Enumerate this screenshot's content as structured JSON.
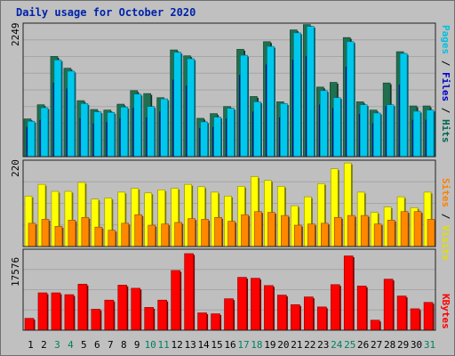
{
  "chart_data": [
    {
      "type": "bar",
      "panel": "pages-files-hits",
      "title": "Daily usage for October 2020",
      "ymax_label": "2249",
      "ylim": [
        0,
        2249
      ],
      "grid": true,
      "categories": [
        "1",
        "2",
        "3",
        "4",
        "5",
        "6",
        "7",
        "8",
        "9",
        "10",
        "11",
        "12",
        "13",
        "14",
        "15",
        "16",
        "17",
        "18",
        "19",
        "20",
        "21",
        "22",
        "23",
        "24",
        "25",
        "26",
        "27",
        "28",
        "29",
        "30",
        "31"
      ],
      "weekend_days": [
        "3",
        "4",
        "10",
        "11",
        "17",
        "18",
        "24",
        "25",
        "31"
      ],
      "legend_parts": [
        {
          "text": "Pages",
          "color": "#00c0e0"
        },
        {
          "text": " / ",
          "color": "#000000"
        },
        {
          "text": "Files",
          "color": "#0000cc"
        },
        {
          "text": " / ",
          "color": "#000000"
        },
        {
          "text": "Hits",
          "color": "#006850"
        }
      ],
      "series": [
        {
          "name": "Hits",
          "color": "#207050",
          "values": [
            640,
            880,
            1700,
            1500,
            950,
            800,
            790,
            890,
            1120,
            1070,
            1000,
            1810,
            1710,
            650,
            730,
            850,
            1820,
            1020,
            1950,
            930,
            2150,
            2240,
            1180,
            1260,
            2020,
            930,
            790,
            1250,
            1780,
            860,
            860
          ]
        },
        {
          "name": "Files",
          "color": "#0000cc",
          "values": [
            500,
            620,
            1250,
            1150,
            650,
            560,
            580,
            650,
            820,
            660,
            760,
            1300,
            1200,
            480,
            500,
            640,
            1380,
            760,
            1560,
            660,
            1640,
            1700,
            880,
            820,
            1520,
            720,
            560,
            850,
            1220,
            620,
            620
          ]
        },
        {
          "name": "Pages",
          "color": "#00c8ec",
          "values": [
            600,
            830,
            1640,
            1450,
            900,
            760,
            750,
            840,
            1060,
            850,
            980,
            1770,
            1660,
            590,
            670,
            820,
            1720,
            930,
            1870,
            900,
            2100,
            2210,
            1120,
            1000,
            1950,
            880,
            740,
            880,
            1750,
            770,
            790
          ]
        }
      ]
    },
    {
      "type": "bar",
      "panel": "sites-visits",
      "ymax_label": "220",
      "ylim": [
        0,
        220
      ],
      "grid": true,
      "legend_parts": [
        {
          "text": "Sites",
          "color": "#ff8000"
        },
        {
          "text": " / ",
          "color": "#000000"
        },
        {
          "text": "Visits",
          "color": "#e0e000"
        }
      ],
      "series": [
        {
          "name": "Visits",
          "color": "#ffff00",
          "values": [
            130,
            160,
            142,
            142,
            165,
            122,
            125,
            140,
            150,
            138,
            146,
            150,
            160,
            154,
            140,
            130,
            155,
            180,
            170,
            155,
            105,
            128,
            162,
            200,
            215,
            140,
            88,
            102,
            128,
            100,
            140
          ]
        },
        {
          "name": "Sites",
          "color": "#ff8800",
          "values": [
            60,
            70,
            52,
            68,
            75,
            50,
            42,
            60,
            82,
            55,
            58,
            62,
            72,
            70,
            75,
            65,
            82,
            90,
            88,
            80,
            55,
            58,
            60,
            75,
            80,
            80,
            58,
            68,
            90,
            90,
            70
          ]
        }
      ]
    },
    {
      "type": "bar",
      "panel": "kbytes",
      "ymax_label": "17576",
      "ylim": [
        0,
        17576
      ],
      "grid": true,
      "legend_parts": [
        {
          "text": "KBytes",
          "color": "#ff0000"
        }
      ],
      "series": [
        {
          "name": "KBytes",
          "color": "#ff0000",
          "values": [
            2600,
            8200,
            8200,
            7800,
            10100,
            4600,
            6600,
            9900,
            9200,
            5000,
            6600,
            13100,
            16800,
            3800,
            3600,
            6900,
            11600,
            11400,
            9800,
            7700,
            5600,
            7300,
            5100,
            10000,
            16300,
            9700,
            2200,
            11200,
            7500,
            4700,
            6100
          ]
        }
      ]
    }
  ]
}
